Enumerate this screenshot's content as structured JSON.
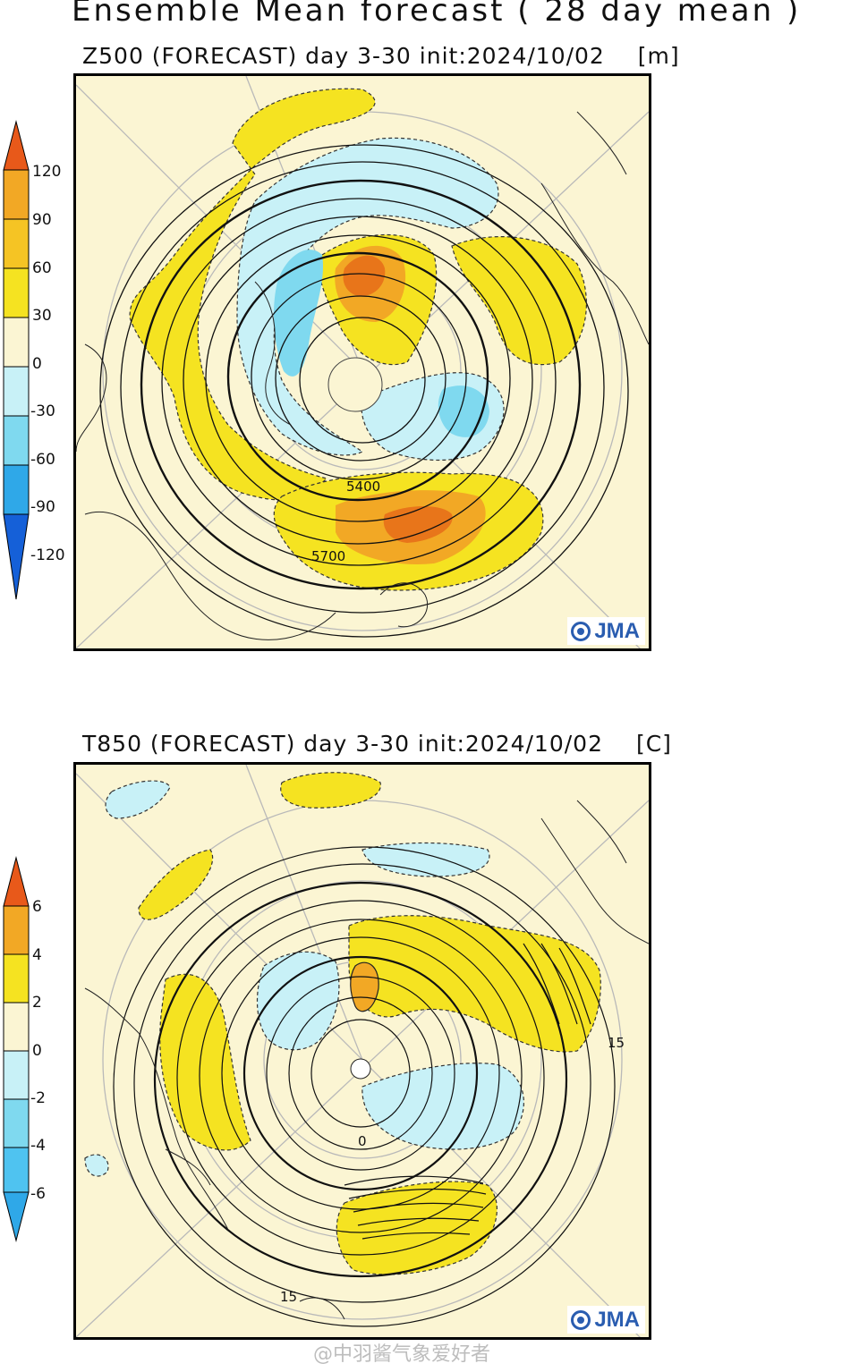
{
  "title": "Ensemble Mean forecast ( 28 day mean )",
  "panels": [
    {
      "title": "Z500 (FORECAST) day 3-30 init:2024/10/02",
      "unit": "[m]",
      "colorbar_ticks": [
        "120",
        "90",
        "60",
        "30",
        "0",
        "-30",
        "-60",
        "-90",
        "-120"
      ],
      "contour_labels": [
        "5400",
        "5700"
      ],
      "logo": "JMA"
    },
    {
      "title": "T850 (FORECAST) day 3-30 init:2024/10/02",
      "unit": "[C]",
      "colorbar_ticks": [
        "6",
        "4",
        "2",
        "0",
        "-2",
        "-4",
        "-6"
      ],
      "contour_labels": [
        "15",
        "0",
        "15"
      ],
      "logo": "JMA"
    }
  ],
  "colors": {
    "pos_strong": "#e8591a",
    "pos_mid": "#f2a825",
    "pos_weak": "#f5e321",
    "neutral": "#fbf5d3",
    "neg_weak": "#c8f1f7",
    "neg_mid": "#7fd9ef",
    "neg_strong": "#2fa8e8",
    "neg_extreme": "#1560d8"
  },
  "watermark": "@中羽酱气象爱好者"
}
